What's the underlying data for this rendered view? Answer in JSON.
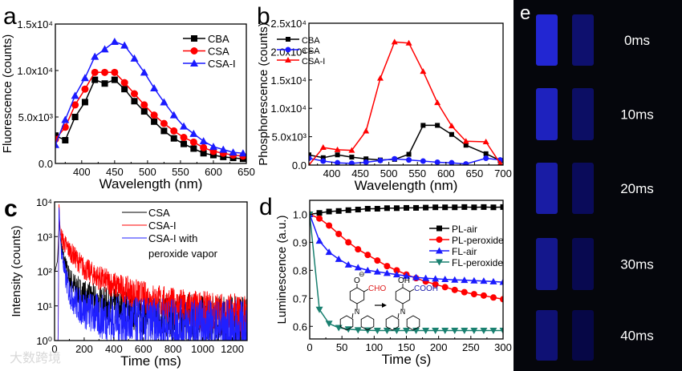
{
  "chart_data": [
    {
      "panel": "a",
      "type": "line",
      "xlabel": "Wavelength (nm)",
      "ylabel": "Fluorescence (counts)",
      "xlim": [
        360,
        650
      ],
      "ylim": [
        0,
        15000
      ],
      "xticks": [
        400,
        450,
        500,
        550,
        600,
        650
      ],
      "yticks": [
        {
          "v": 0,
          "label": "0.0"
        },
        {
          "v": 5000,
          "label": "5.0x10³"
        },
        {
          "v": 10000,
          "label": "1.0x10⁴"
        },
        {
          "v": 15000,
          "label": "1.5x10⁴"
        }
      ],
      "legend_position": "top-right",
      "x": [
        360,
        375,
        390,
        405,
        420,
        435,
        450,
        465,
        480,
        495,
        510,
        525,
        540,
        555,
        570,
        585,
        600,
        615,
        630,
        645
      ],
      "series": [
        {
          "name": "CBA",
          "color": "#000000",
          "marker": "square",
          "values": [
            3000,
            2500,
            5000,
            6600,
            9000,
            8600,
            9000,
            8000,
            6700,
            5600,
            4500,
            3500,
            2700,
            2100,
            1600,
            1100,
            900,
            700,
            600,
            500
          ]
        },
        {
          "name": "CSA",
          "color": "#ff0000",
          "marker": "circle",
          "values": [
            2600,
            3900,
            6300,
            8000,
            9800,
            9800,
            9800,
            8700,
            7500,
            6300,
            5200,
            4300,
            3500,
            2800,
            2300,
            1700,
            1300,
            1100,
            900,
            800
          ]
        },
        {
          "name": "CSA-I",
          "color": "#1a1aff",
          "marker": "triangle-up",
          "values": [
            2000,
            4700,
            7300,
            9200,
            11500,
            12300,
            13100,
            12700,
            11300,
            9800,
            8100,
            6600,
            5200,
            4000,
            3200,
            2400,
            1800,
            1500,
            1200,
            1100
          ]
        }
      ]
    },
    {
      "panel": "b",
      "type": "line",
      "xlabel": "Wavelength (nm)",
      "ylabel": "Phosphorescence (counts)",
      "xlim": [
        360,
        700
      ],
      "ylim": [
        0,
        25000
      ],
      "xticks": [
        400,
        450,
        500,
        550,
        600,
        650,
        700
      ],
      "yticks": [
        {
          "v": 0,
          "label": "0.0"
        },
        {
          "v": 5000,
          "label": "5.0x10³"
        },
        {
          "v": 10000,
          "label": "1.0x10⁴"
        },
        {
          "v": 15000,
          "label": "1.5x10⁴"
        },
        {
          "v": 20000,
          "label": "2.0x10⁴"
        },
        {
          "v": 25000,
          "label": "2.5x10⁴"
        }
      ],
      "legend_position": "top-left",
      "x": [
        360,
        385,
        410,
        435,
        460,
        485,
        510,
        535,
        560,
        585,
        610,
        635,
        670,
        695
      ],
      "series": [
        {
          "name": "CBA",
          "color": "#000000",
          "marker": "square",
          "values": [
            1800,
            1300,
            1800,
            1400,
            1100,
            900,
            1000,
            1900,
            7000,
            7000,
            5400,
            3500,
            2000,
            800
          ]
        },
        {
          "name": "CSA",
          "color": "#1a1aff",
          "marker": "circle",
          "values": [
            1200,
            700,
            400,
            300,
            500,
            800,
            1100,
            900,
            700,
            500,
            400,
            200,
            1200,
            900
          ]
        },
        {
          "name": "CSA-I",
          "color": "#ff0000",
          "marker": "triangle-up",
          "values": [
            0,
            3100,
            2700,
            2600,
            6000,
            15300,
            21700,
            21500,
            16500,
            11000,
            6900,
            4200,
            4100,
            300
          ]
        }
      ]
    },
    {
      "panel": "c",
      "type": "line",
      "xlabel": "Time (ms)",
      "ylabel": "Intensity (counts)",
      "xlim": [
        0,
        1300
      ],
      "ylim": [
        1,
        10000
      ],
      "yscale": "log",
      "xticks": [
        0,
        200,
        400,
        600,
        800,
        1000,
        1200
      ],
      "yticks": [
        {
          "v": 1,
          "label": "10⁰"
        },
        {
          "v": 10,
          "label": "10¹"
        },
        {
          "v": 100,
          "label": "10²"
        },
        {
          "v": 1000,
          "label": "10³"
        },
        {
          "v": 10000,
          "label": "10⁴"
        }
      ],
      "legend_position": "top-right",
      "series": [
        {
          "name": "CSA",
          "legend": [
            "CSA"
          ],
          "color": "#000000",
          "t": [
            0,
            20,
            32,
            40,
            50,
            70,
            100,
            150,
            200,
            300,
            400,
            600,
            800,
            1000,
            1300
          ],
          "values": [
            90,
            200,
            3000,
            900,
            400,
            150,
            60,
            30,
            20,
            12,
            9,
            6,
            5,
            4.5,
            4
          ]
        },
        {
          "name": "CSA-I",
          "legend": [
            "CSA-I"
          ],
          "color": "#ff0000",
          "t": [
            0,
            24,
            30,
            34,
            40,
            60,
            100,
            200,
            300,
            400,
            600,
            800,
            1000,
            1300
          ],
          "values": [
            1,
            1,
            10000,
            3000,
            1200,
            700,
            400,
            120,
            65,
            40,
            18,
            10,
            7,
            5
          ]
        },
        {
          "name": "CSA-I with peroxide vapor",
          "legend": [
            "CSA-I with",
            "peroxide vapor"
          ],
          "color": "#2020ff",
          "t": [
            0,
            24,
            30,
            34,
            40,
            50,
            70,
            100,
            150,
            200,
            300,
            400,
            600,
            800,
            1000,
            1300
          ],
          "values": [
            1,
            1,
            8000,
            2500,
            800,
            300,
            80,
            25,
            12,
            8,
            5,
            4,
            3,
            2.5,
            2.3,
            2
          ]
        }
      ]
    },
    {
      "panel": "d",
      "type": "line",
      "xlabel": "Time (s)",
      "ylabel": "Luminescence (a.u.)",
      "xlim": [
        0,
        300
      ],
      "ylim": [
        0.555,
        1.05
      ],
      "xticks": [
        0,
        50,
        100,
        150,
        200,
        250,
        300
      ],
      "yticks": [
        {
          "v": 0.6,
          "label": "0.6"
        },
        {
          "v": 0.7,
          "label": "0.7"
        },
        {
          "v": 0.8,
          "label": "0.8"
        },
        {
          "v": 0.9,
          "label": "0.9"
        },
        {
          "v": 1.0,
          "label": "1.0"
        }
      ],
      "legend_position": "top-right",
      "x": [
        0,
        15,
        30,
        45,
        60,
        75,
        90,
        105,
        120,
        135,
        150,
        165,
        180,
        195,
        210,
        225,
        240,
        255,
        270,
        285,
        300
      ],
      "series": [
        {
          "name": "PL-air",
          "color": "#000000",
          "marker": "square",
          "values": [
            1.0,
            1.005,
            1.01,
            1.012,
            1.015,
            1.017,
            1.02,
            1.02,
            1.022,
            1.022,
            1.023,
            1.023,
            1.024,
            1.025,
            1.025,
            1.025,
            1.026,
            1.025,
            1.026,
            1.025,
            1.026
          ]
        },
        {
          "name": "PL-peroxide",
          "color": "#ff0000",
          "marker": "circle",
          "values": [
            1.0,
            0.985,
            0.96,
            0.93,
            0.9,
            0.875,
            0.855,
            0.835,
            0.815,
            0.8,
            0.785,
            0.772,
            0.76,
            0.75,
            0.74,
            0.73,
            0.722,
            0.715,
            0.71,
            0.703,
            0.697
          ]
        },
        {
          "name": "FL-air",
          "color": "#1a1aff",
          "marker": "triangle-up",
          "values": [
            1.0,
            0.905,
            0.865,
            0.84,
            0.82,
            0.81,
            0.8,
            0.795,
            0.79,
            0.785,
            0.78,
            0.775,
            0.772,
            0.77,
            0.768,
            0.766,
            0.765,
            0.763,
            0.762,
            0.76,
            0.758
          ]
        },
        {
          "name": "FL-peroxide",
          "color": "#1a8070",
          "marker": "triangle-down",
          "values": [
            1.0,
            0.66,
            0.61,
            0.595,
            0.59,
            0.587,
            0.586,
            0.585,
            0.585,
            0.585,
            0.585,
            0.585,
            0.585,
            0.585,
            0.585,
            0.585,
            0.585,
            0.585,
            0.585,
            0.585,
            0.585
          ]
        }
      ],
      "scheme": {
        "left_o": "O",
        "left_charge": "⊖",
        "left_group": "CHO",
        "right_oh": "OH",
        "right_group": "COOH",
        "nitrogen": "N"
      }
    }
  ],
  "panel_labels": {
    "a": "a",
    "b": "b",
    "c": "c",
    "d": "d",
    "e": "e"
  },
  "panel_e": {
    "frames": [
      {
        "label": "0ms",
        "left_intensity": 0.85,
        "right_intensity": 0.35
      },
      {
        "label": "10ms",
        "left_intensity": 0.75,
        "right_intensity": 0.3
      },
      {
        "label": "20ms",
        "left_intensity": 0.62,
        "right_intensity": 0.25
      },
      {
        "label": "30ms",
        "left_intensity": 0.5,
        "right_intensity": 0.2
      },
      {
        "label": "40ms",
        "left_intensity": 0.38,
        "right_intensity": 0.15
      }
    ]
  },
  "watermark": "大数跨境"
}
